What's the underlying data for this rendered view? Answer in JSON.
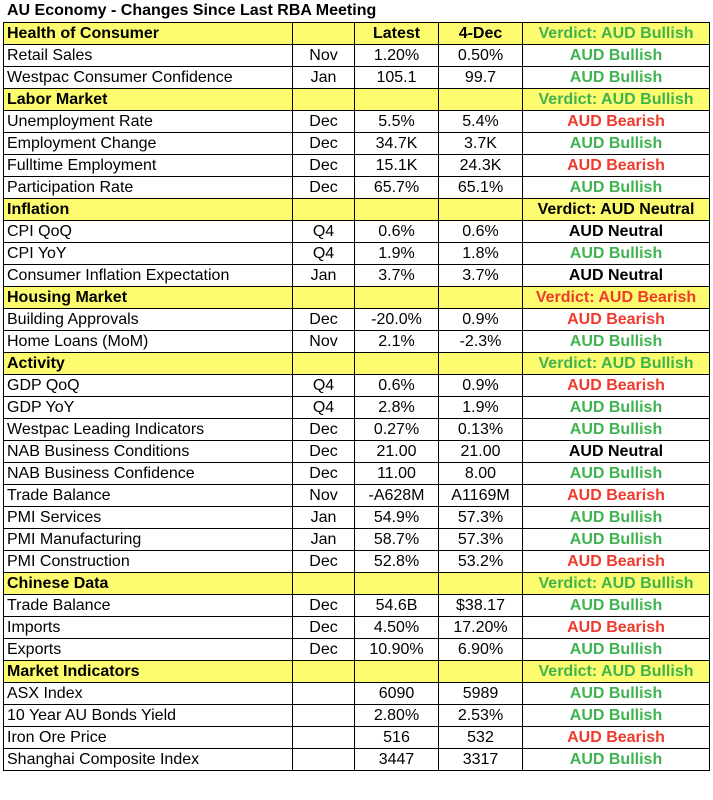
{
  "title": "AU Economy - Changes Since Last RBA Meeting",
  "colors": {
    "bullish": "#3fb34f",
    "bearish": "#f03a2e",
    "neutral": "#000000",
    "section_fill": "#fdfb6e"
  },
  "rows": [
    {
      "type": "section",
      "name": "Health of Consumer",
      "period": "",
      "latest": "Latest",
      "prev": "4-Dec",
      "verdict": "Verdict: AUD Bullish",
      "tone": "bull"
    },
    {
      "type": "data",
      "name": "Retail Sales",
      "period": "Nov",
      "latest": "1.20%",
      "prev": "0.50%",
      "verdict": "AUD Bullish",
      "tone": "bull"
    },
    {
      "type": "data",
      "name": "Westpac Consumer Confidence",
      "period": "Jan",
      "latest": "105.1",
      "prev": "99.7",
      "verdict": "AUD Bullish",
      "tone": "bull"
    },
    {
      "type": "section",
      "name": "Labor Market",
      "period": "",
      "latest": "",
      "prev": "",
      "verdict": "Verdict: AUD Bullish",
      "tone": "bull"
    },
    {
      "type": "data",
      "name": "Unemployment Rate",
      "period": "Dec",
      "latest": "5.5%",
      "prev": "5.4%",
      "verdict": "AUD Bearish",
      "tone": "bear"
    },
    {
      "type": "data",
      "name": "Employment Change",
      "period": "Dec",
      "latest": "34.7K",
      "prev": "3.7K",
      "verdict": "AUD Bullish",
      "tone": "bull"
    },
    {
      "type": "data",
      "name": "Fulltime Employment",
      "period": "Dec",
      "latest": "15.1K",
      "prev": "24.3K",
      "verdict": "AUD Bearish",
      "tone": "bear"
    },
    {
      "type": "data",
      "name": "Participation Rate",
      "period": "Dec",
      "latest": "65.7%",
      "prev": "65.1%",
      "verdict": "AUD Bullish",
      "tone": "bull"
    },
    {
      "type": "section",
      "name": "Inflation",
      "period": "",
      "latest": "",
      "prev": "",
      "verdict": "Verdict: AUD Neutral",
      "tone": "neut"
    },
    {
      "type": "data",
      "name": "CPI QoQ",
      "period": "Q4",
      "latest": "0.6%",
      "prev": "0.6%",
      "verdict": "AUD Neutral",
      "tone": "neut"
    },
    {
      "type": "data",
      "name": "CPI YoY",
      "period": "Q4",
      "latest": "1.9%",
      "prev": "1.8%",
      "verdict": "AUD Bullish",
      "tone": "bull"
    },
    {
      "type": "data",
      "name": "Consumer Inflation Expectation",
      "period": "Jan",
      "latest": "3.7%",
      "prev": "3.7%",
      "verdict": "AUD Neutral",
      "tone": "neut"
    },
    {
      "type": "section",
      "name": "Housing Market",
      "period": "",
      "latest": "",
      "prev": "",
      "verdict": "Verdict: AUD Bearish",
      "tone": "bear"
    },
    {
      "type": "data",
      "name": "Building Approvals",
      "period": "Dec",
      "latest": "-20.0%",
      "prev": "0.9%",
      "verdict": "AUD Bearish",
      "tone": "bear"
    },
    {
      "type": "data",
      "name": "Home Loans (MoM)",
      "period": "Nov",
      "latest": "2.1%",
      "prev": "-2.3%",
      "verdict": "AUD Bullish",
      "tone": "bull"
    },
    {
      "type": "section",
      "name": "Activity",
      "period": "",
      "latest": "",
      "prev": "",
      "verdict": "Verdict: AUD Bullish",
      "tone": "bull"
    },
    {
      "type": "data",
      "name": "GDP QoQ",
      "period": "Q4",
      "latest": "0.6%",
      "prev": "0.9%",
      "verdict": "AUD Bearish",
      "tone": "bear"
    },
    {
      "type": "data",
      "name": "GDP YoY",
      "period": "Q4",
      "latest": "2.8%",
      "prev": "1.9%",
      "verdict": "AUD Bullish",
      "tone": "bull"
    },
    {
      "type": "data",
      "name": "Westpac Leading Indicators",
      "period": "Dec",
      "latest": "0.27%",
      "prev": "0.13%",
      "verdict": "AUD Bullish",
      "tone": "bull"
    },
    {
      "type": "data",
      "name": "NAB Business Conditions",
      "period": "Dec",
      "latest": "21.00",
      "prev": "21.00",
      "verdict": "AUD Neutral",
      "tone": "neut"
    },
    {
      "type": "data",
      "name": "NAB Business Confidence",
      "period": "Dec",
      "latest": "11.00",
      "prev": "8.00",
      "verdict": "AUD Bullish",
      "tone": "bull"
    },
    {
      "type": "data",
      "name": "Trade Balance",
      "period": "Nov",
      "latest": "-A628M",
      "prev": "A1169M",
      "verdict": "AUD Bearish",
      "tone": "bear"
    },
    {
      "type": "data",
      "name": "PMI Services",
      "period": "Jan",
      "latest": "54.9%",
      "prev": "57.3%",
      "verdict": "AUD Bullish",
      "tone": "bull"
    },
    {
      "type": "data",
      "name": "PMI Manufacturing",
      "period": "Jan",
      "latest": "58.7%",
      "prev": "57.3%",
      "verdict": "AUD Bullish",
      "tone": "bull"
    },
    {
      "type": "data",
      "name": "PMI Construction",
      "period": "Dec",
      "latest": "52.8%",
      "prev": "53.2%",
      "verdict": "AUD Bearish",
      "tone": "bear"
    },
    {
      "type": "section",
      "name": "Chinese Data",
      "period": "",
      "latest": "",
      "prev": "",
      "verdict": "Verdict: AUD Bullish",
      "tone": "bull"
    },
    {
      "type": "data",
      "name": "Trade Balance",
      "period": "Dec",
      "latest": "54.6B",
      "prev": "$38.17",
      "verdict": "AUD Bullish",
      "tone": "bull"
    },
    {
      "type": "data",
      "name": "Imports",
      "period": "Dec",
      "latest": "4.50%",
      "prev": "17.20%",
      "verdict": "AUD Bearish",
      "tone": "bear"
    },
    {
      "type": "data",
      "name": "Exports",
      "period": "Dec",
      "latest": "10.90%",
      "prev": "6.90%",
      "verdict": "AUD Bullish",
      "tone": "bull"
    },
    {
      "type": "section",
      "name": "Market Indicators",
      "period": "",
      "latest": "",
      "prev": "",
      "verdict": "Verdict: AUD Bullish",
      "tone": "bull"
    },
    {
      "type": "data",
      "name": "ASX Index",
      "period": "",
      "latest": "6090",
      "prev": "5989",
      "verdict": "AUD Bullish",
      "tone": "bull"
    },
    {
      "type": "data",
      "name": "10 Year AU Bonds Yield",
      "period": "",
      "latest": "2.80%",
      "prev": "2.53%",
      "verdict": "AUD Bullish",
      "tone": "bull"
    },
    {
      "type": "data",
      "name": "Iron Ore Price",
      "period": "",
      "latest": "516",
      "prev": "532",
      "verdict": "AUD Bearish",
      "tone": "bear"
    },
    {
      "type": "data",
      "name": "Shanghai Composite Index",
      "period": "",
      "latest": "3447",
      "prev": "3317",
      "verdict": "AUD Bullish",
      "tone": "bull"
    }
  ]
}
